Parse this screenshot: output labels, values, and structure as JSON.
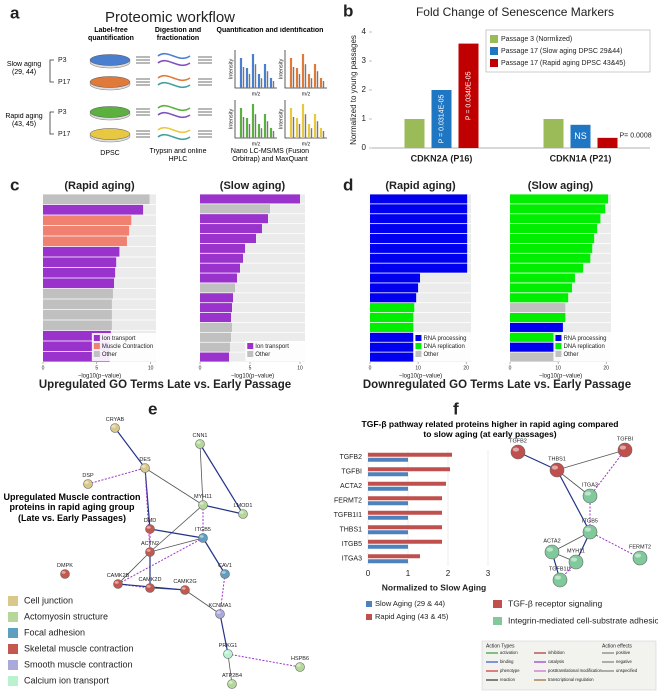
{
  "panel_labels": [
    "a",
    "b",
    "c",
    "d",
    "e",
    "f"
  ],
  "workflow": {
    "title": "Proteomic workflow",
    "headers": [
      "Label-free quantification",
      "Digestion and fractionation",
      "Quantification and identification"
    ],
    "groups": [
      "Slow aging (29, 44)",
      "Rapid aging (43, 45)"
    ],
    "passages": [
      "P3",
      "P17",
      "P3",
      "P17"
    ],
    "spectrum_axes": {
      "y": "Intensity",
      "x": "m/z"
    },
    "footers": [
      "DPSC",
      "Trypsin and online HPLC",
      "Nano LC-MS/MS (Fusion Orbitrap) and MaxQuant"
    ]
  },
  "chart_data": [
    {
      "type": "bar",
      "title": "Fold Change of  Senescence Markers",
      "y_label": "Normalized to young passages",
      "categories": [
        "CDKN2A (P16)",
        "CDKN1A (P21)"
      ],
      "series": [
        {
          "name": "Passage 3 (Normlized)",
          "color": "#9bbb59",
          "values": [
            1,
            1
          ]
        },
        {
          "name": "Passage 17 (Slow aging DPSC 29&44)",
          "color": "#1f77c4",
          "values": [
            2.0,
            0.8
          ]
        },
        {
          "name": "Passage 17 (Rapid aging DPSC 43&45)",
          "color": "#c00000",
          "values": [
            3.6,
            0.35
          ]
        }
      ],
      "ylim": [
        0,
        4
      ],
      "yticks": [
        0,
        1,
        2,
        3,
        4
      ],
      "annotations": [
        "P = 0.0314E-05",
        "P = 0.0340E-05",
        "NS",
        "P= 0.0008"
      ],
      "legend_position": "upper right"
    },
    {
      "type": "hbar",
      "title": "(Rapid aging)",
      "x_label": "−log10(p−value)",
      "categories": [
        null,
        null,
        null,
        null,
        null,
        null,
        null,
        null,
        null,
        null,
        null,
        null,
        null,
        null,
        null,
        null
      ],
      "values": [
        9.9,
        9.3,
        8.2,
        8.0,
        7.8,
        7.1,
        6.8,
        6.7,
        6.6,
        6.5,
        6.4,
        6.4,
        6.4,
        6.3,
        6.2,
        6.2
      ],
      "colors": [
        "#c0c0c0",
        "#9933cc",
        "#f08070",
        "#f08070",
        "#f08070",
        "#9933cc",
        "#9933cc",
        "#9933cc",
        "#9933cc",
        "#c0c0c0",
        "#c0c0c0",
        "#c0c0c0",
        "#c0c0c0",
        "#9933cc",
        "#9933cc",
        "#9933cc"
      ],
      "legend": [
        {
          "name": "Ion transport",
          "color": "#9933cc"
        },
        {
          "name": "Muscle Contraction",
          "color": "#f08070"
        },
        {
          "name": "Other",
          "color": "#c0c0c0"
        }
      ],
      "xlim": [
        0,
        10.5
      ],
      "xticks": [
        0,
        5,
        10
      ]
    },
    {
      "type": "hbar",
      "title": "(Slow aging)",
      "x_label": "−log10(p−value)",
      "categories": [
        null,
        null,
        null,
        null,
        null,
        null,
        null,
        null,
        null,
        null,
        null,
        null,
        null,
        null,
        null,
        null,
        null
      ],
      "values": [
        10.0,
        7.0,
        6.8,
        6.2,
        5.6,
        4.5,
        4.3,
        4.0,
        3.7,
        3.5,
        3.3,
        3.2,
        3.1,
        3.2,
        3.1,
        3.0,
        2.9
      ],
      "colors": [
        "#9933cc",
        "#c0c0c0",
        "#9933cc",
        "#9933cc",
        "#9933cc",
        "#9933cc",
        "#9933cc",
        "#9933cc",
        "#9933cc",
        "#c0c0c0",
        "#9933cc",
        "#9933cc",
        "#9933cc",
        "#c0c0c0",
        "#c0c0c0",
        "#c0c0c0",
        "#9933cc"
      ],
      "legend": [
        {
          "name": "Ion transport",
          "color": "#9933cc"
        },
        {
          "name": "Other",
          "color": "#c0c0c0"
        }
      ],
      "xlim": [
        0,
        10.5
      ],
      "xticks": [
        0,
        5,
        10
      ]
    },
    {
      "type": "hbar",
      "title": "(Rapid aging)",
      "x_label": "−log10(p−value)",
      "categories": [
        null,
        null,
        null,
        null,
        null,
        null,
        null,
        null,
        null,
        null,
        null,
        null,
        null,
        null,
        null,
        null,
        null
      ],
      "values": [
        20.2,
        20.2,
        20.2,
        20.2,
        20.2,
        20.2,
        20.2,
        20.2,
        10.4,
        10.0,
        9.6,
        9.2,
        9.0,
        9.0,
        9.0,
        9.0,
        9.0
      ],
      "colors": [
        "#0000ee",
        "#0000ee",
        "#0000ee",
        "#0000ee",
        "#0000ee",
        "#0000ee",
        "#0000ee",
        "#0000ee",
        "#0000ee",
        "#0000ee",
        "#0000ee",
        "#00ee00",
        "#00ee00",
        "#00ee00",
        "#0000ee",
        "#0000ee",
        "#0000ee"
      ],
      "legend": [
        {
          "name": "RNA processing",
          "color": "#0000ee"
        },
        {
          "name": "DNA replication",
          "color": "#00ee00"
        },
        {
          "name": "Other",
          "color": "#c0c0c0"
        }
      ],
      "xlim": [
        0,
        21
      ],
      "xticks": [
        0,
        10,
        20
      ]
    },
    {
      "type": "hbar",
      "title": "(Slow aging)",
      "x_label": "−log10(p−value)",
      "categories": [
        null,
        null,
        null,
        null,
        null,
        null,
        null,
        null,
        null,
        null,
        null,
        null,
        null,
        null,
        null,
        null,
        null
      ],
      "values": [
        20.4,
        19.8,
        18.8,
        18.1,
        17.5,
        17.1,
        16.7,
        15.2,
        13.5,
        12.9,
        12.1,
        11.5,
        11.5,
        11.0,
        10.8,
        10.4,
        10.4
      ],
      "colors": [
        "#00ee00",
        "#00ee00",
        "#00ee00",
        "#00ee00",
        "#00ee00",
        "#00ee00",
        "#00ee00",
        "#00ee00",
        "#00ee00",
        "#00ee00",
        "#00ee00",
        "#c0c0c0",
        "#00ee00",
        "#0000ee",
        "#00ee00",
        "#0000ee",
        "#c0c0c0"
      ],
      "legend": [
        {
          "name": "RNA processing",
          "color": "#0000ee"
        },
        {
          "name": "DNA replication",
          "color": "#00ee00"
        },
        {
          "name": "Other",
          "color": "#c0c0c0"
        }
      ],
      "xlim": [
        0,
        21
      ],
      "xticks": [
        0,
        10,
        20
      ]
    },
    {
      "type": "grouped_hbar",
      "title": "TGF-β pathway related proteins higher in rapid aging compared to slow aging (at early passages)",
      "x_label": "Normalized to Slow Aging",
      "categories": [
        "TGFB2",
        "TGFBI",
        "ACTA2",
        "FERMT2",
        "TGFB1I1",
        "THBS1",
        "ITGB5",
        "ITGA3"
      ],
      "series": [
        {
          "name": "Slow Aging (29 & 44)",
          "color": "#4f81bd",
          "values": [
            1,
            1,
            1,
            1,
            1,
            1,
            1,
            1
          ]
        },
        {
          "name": "Rapid Aging (43 & 45)",
          "color": "#c0504d",
          "values": [
            2.1,
            2.05,
            1.95,
            1.85,
            1.85,
            1.85,
            1.85,
            1.3
          ]
        }
      ],
      "xlim": [
        0,
        3
      ],
      "xticks": [
        0,
        1,
        2,
        3
      ],
      "grid": true,
      "legend_position": "bottom"
    }
  ],
  "captions": [
    "Upregulated GO Terms Late vs. Early Passage",
    "Downregulated GO Terms Late vs. Early Passage"
  ],
  "network_e": {
    "title": "Upregulated Muscle contraction proteins in rapid aging group (Late vs. Early Passages)",
    "nodes": [
      "CRYAB",
      "DSP",
      "DES",
      "CNN1",
      "MYH11",
      "LMOD1",
      "DMD",
      "ITGB5",
      "CAV1",
      "DMPK",
      "ACTN2",
      "CAMK2B",
      "CAMK2D",
      "CAMK2G",
      "KCNMA1",
      "PRKG1",
      "HSPB6",
      "ATP2B4"
    ],
    "legend": [
      {
        "name": "Cell junction",
        "color": "#d9c88c"
      },
      {
        "name": "Actomyosin structure",
        "color": "#b5d89a"
      },
      {
        "name": "Focal adhesion",
        "color": "#5e9fc0"
      },
      {
        "name": "Skeletal muscle contraction",
        "color": "#c4574e"
      },
      {
        "name": "Smooth muscle contraction",
        "color": "#a9a9dc"
      },
      {
        "name": "Calcium ion transport",
        "color": "#b9f2cf"
      }
    ]
  },
  "network_f": {
    "nodes": [
      "TGFB2",
      "TGFBI",
      "THBS1",
      "ITGA3",
      "ITGB5",
      "ACTA2",
      "MYH11",
      "FERMT2",
      "TGFB1I1"
    ],
    "legend": [
      {
        "name": "TGF-β receptor signaling",
        "color": "#c0504d"
      },
      {
        "name": "Integrin-mediated cell-substrate adhesion",
        "color": "#7fc99a"
      }
    ],
    "action_key": {
      "types_title": "Action Types",
      "types": [
        "activation",
        "binding",
        "phenotype",
        "reaction",
        "inhibition",
        "catalysis",
        "posttranslational modification",
        "transcriptional regulation"
      ],
      "effects_title": "Action effects",
      "effects": [
        "positive",
        "negative",
        "unspecified"
      ]
    }
  }
}
